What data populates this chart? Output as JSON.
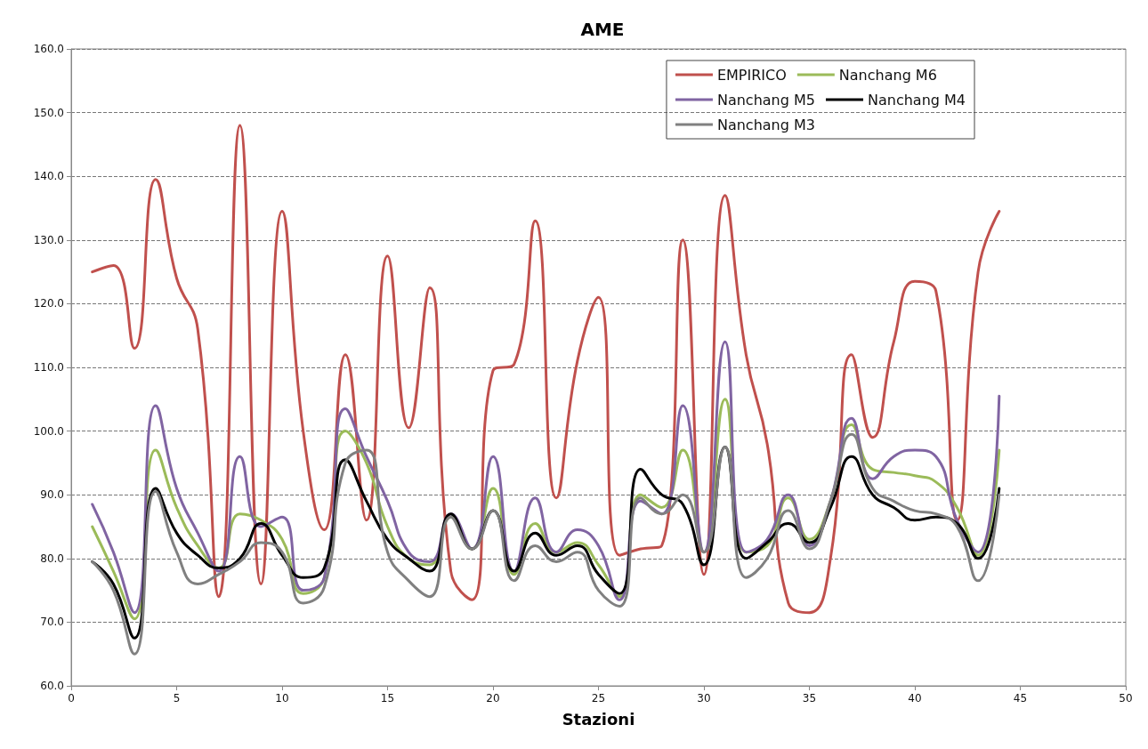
{
  "chart_data": {
    "type": "line",
    "title": "AME",
    "xlabel": "Stazioni",
    "x": [
      1,
      2,
      3,
      4,
      5,
      6,
      7,
      8,
      9,
      10,
      11,
      12,
      13,
      14,
      15,
      16,
      17,
      18,
      19,
      20,
      21,
      22,
      23,
      24,
      25,
      26,
      27,
      28,
      29,
      30,
      31,
      32,
      33,
      34,
      35,
      36,
      37,
      38,
      39,
      40,
      41,
      42,
      43,
      44
    ],
    "series": [
      {
        "name": "EMPIRICO",
        "color": "#c0504d",
        "values": [
          125,
          126,
          113,
          139.5,
          124,
          116,
          74,
          148,
          76,
          134.5,
          100,
          84.5,
          112,
          86,
          127.5,
          100.5,
          122.5,
          78,
          73.5,
          109.5,
          110.5,
          133,
          89.5,
          111,
          121,
          80.5,
          81.5,
          82,
          130,
          77.5,
          137,
          112,
          98,
          73,
          71.5,
          80,
          112,
          99,
          114,
          123.5,
          122,
          86,
          125,
          134.5
        ]
      },
      {
        "name": "Nanchang M6",
        "color": "#9bbb59",
        "values": [
          85,
          78,
          70.5,
          97,
          88,
          82,
          78.5,
          87,
          86,
          83,
          74.5,
          77,
          100,
          95,
          85,
          80,
          79,
          86.5,
          81.5,
          91,
          77.5,
          85.5,
          81,
          82.5,
          79,
          74,
          90,
          88,
          97,
          81,
          105,
          81,
          82,
          89.5,
          83,
          89,
          101,
          94,
          93.5,
          93,
          92,
          88,
          80.5,
          97
        ]
      },
      {
        "name": "Nanchang M5",
        "color": "#8064a2",
        "values": [
          88.5,
          81,
          71.5,
          104,
          91,
          84,
          78,
          96,
          85,
          86.5,
          75,
          77,
          103.5,
          96,
          89,
          81,
          79.5,
          87,
          81.5,
          96,
          78,
          89.5,
          81,
          84.5,
          82,
          73.5,
          89,
          87,
          104,
          81,
          114,
          81,
          83,
          90,
          82,
          89,
          102,
          92.5,
          96,
          97,
          96,
          86,
          81,
          105.5
        ]
      },
      {
        "name": "Nanchang M4",
        "color": "#000000",
        "values": [
          79.5,
          76,
          67.5,
          91,
          84,
          80.5,
          78.5,
          80,
          85.5,
          80.5,
          77,
          78.5,
          95.5,
          89,
          83,
          80,
          78,
          87,
          81.5,
          87.5,
          78,
          84,
          80.5,
          82,
          77.5,
          74.5,
          94,
          90,
          88.5,
          79,
          97.5,
          80,
          82.5,
          85.5,
          82.5,
          88,
          96,
          90,
          88,
          86,
          86.5,
          85.5,
          80,
          91
        ]
      },
      {
        "name": "Nanchang M3",
        "color": "#808080",
        "values": [
          79.5,
          75,
          65,
          90.5,
          81,
          76,
          77.5,
          79.5,
          82.5,
          81,
          73,
          75.5,
          95,
          97,
          81,
          76.5,
          74,
          86.5,
          81.5,
          87.5,
          76.5,
          82,
          79.5,
          81,
          75,
          72.5,
          89.5,
          87,
          90,
          81,
          97.5,
          77,
          80,
          87.5,
          81.5,
          89,
          99.5,
          91,
          89,
          87.5,
          87,
          85,
          76.5,
          90
        ]
      }
    ],
    "xlim": [
      0,
      50
    ],
    "xticks": [
      0,
      5,
      10,
      15,
      20,
      25,
      30,
      35,
      40,
      45,
      50
    ],
    "ylim": [
      60,
      160
    ],
    "yticks": [
      {
        "value": 60,
        "label": "60.0"
      },
      {
        "value": 70,
        "label": "70.0"
      },
      {
        "value": 80,
        "label": "80.0"
      },
      {
        "value": 90,
        "label": "90.0"
      },
      {
        "value": 100,
        "label": "100.0"
      },
      {
        "value": 110,
        "label": "110.0"
      },
      {
        "value": 120,
        "label": "120.0"
      },
      {
        "value": 130,
        "label": "130.0"
      },
      {
        "value": 140,
        "label": "140.0"
      },
      {
        "value": 150,
        "label": "150.0"
      },
      {
        "value": 160,
        "label": "160.0"
      }
    ],
    "grid": "y",
    "legend": "top right",
    "marker": "none",
    "line_style": "solid"
  }
}
